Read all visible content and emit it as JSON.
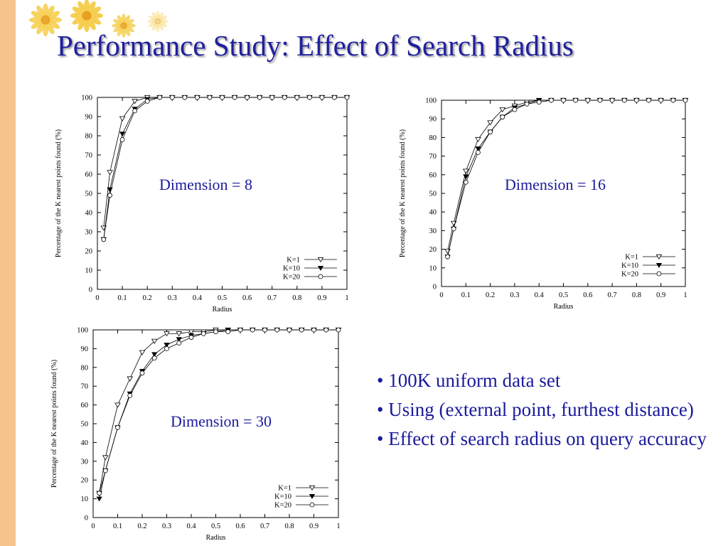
{
  "slide": {
    "title": "Performance Study: Effect of Search Radius",
    "bullets": [
      "• 100K uniform data set",
      "• Using (external point, furthest distance)",
      "• Effect of search radius on query accuracy"
    ],
    "colors": {
      "title": "#1f1f9e",
      "text": "#1a1a9c",
      "strip": "#f7c38c",
      "flower": "#f6cf52"
    }
  },
  "chart_data": [
    {
      "type": "line",
      "annotation": "Dimension = 8",
      "xlabel": "Radius",
      "ylabel": "Percentage of the K nearest points found (%)",
      "xlim": [
        0,
        1
      ],
      "ylim": [
        0,
        100
      ],
      "xticks": [
        "0",
        "0.1",
        "0.2",
        "0.3",
        "0.4",
        "0.5",
        "0.6",
        "0.7",
        "0.8",
        "0.9",
        "1"
      ],
      "yticks": [
        "0",
        "10",
        "20",
        "30",
        "40",
        "50",
        "60",
        "70",
        "80",
        "90",
        "100"
      ],
      "legend_position": "bottom-right",
      "x": [
        0.025,
        0.05,
        0.1,
        0.15,
        0.2,
        0.25,
        0.3,
        0.35,
        0.4,
        0.45,
        0.5,
        0.55,
        0.6,
        0.65,
        0.7,
        0.75,
        0.8,
        0.85,
        0.9,
        0.95,
        1.0
      ],
      "series": [
        {
          "name": "K=1",
          "marker": "triangle-down-open",
          "values": [
            32,
            61,
            89,
            98,
            100,
            100,
            100,
            100,
            100,
            100,
            100,
            100,
            100,
            100,
            100,
            100,
            100,
            100,
            100,
            100,
            100
          ]
        },
        {
          "name": "K=10",
          "marker": "triangle-down-filled",
          "values": [
            26,
            52,
            81,
            94,
            99,
            100,
            100,
            100,
            100,
            100,
            100,
            100,
            100,
            100,
            100,
            100,
            100,
            100,
            100,
            100,
            100
          ]
        },
        {
          "name": "K=20",
          "marker": "circle-open",
          "values": [
            26,
            49,
            78,
            93,
            98,
            100,
            100,
            100,
            100,
            100,
            100,
            100,
            100,
            100,
            100,
            100,
            100,
            100,
            100,
            100,
            100
          ]
        }
      ]
    },
    {
      "type": "line",
      "annotation": "Dimension = 16",
      "xlabel": "Radius",
      "ylabel": "Percentage of the K nearest points found (%)",
      "xlim": [
        0,
        1
      ],
      "ylim": [
        0,
        100
      ],
      "xticks": [
        "0",
        "0.1",
        "0.2",
        "0.3",
        "0.4",
        "0.5",
        "0.6",
        "0.7",
        "0.8",
        "0.9",
        "1"
      ],
      "yticks": [
        "0",
        "10",
        "20",
        "30",
        "40",
        "50",
        "60",
        "70",
        "80",
        "90",
        "100"
      ],
      "legend_position": "bottom-right",
      "x": [
        0.025,
        0.05,
        0.1,
        0.15,
        0.2,
        0.25,
        0.3,
        0.35,
        0.4,
        0.45,
        0.5,
        0.55,
        0.6,
        0.65,
        0.7,
        0.75,
        0.8,
        0.85,
        0.9,
        0.95,
        1.0
      ],
      "series": [
        {
          "name": "K=1",
          "marker": "triangle-down-open",
          "values": [
            19,
            34,
            62,
            79,
            88,
            95,
            97,
            99,
            100,
            100,
            100,
            100,
            100,
            100,
            100,
            100,
            100,
            100,
            100,
            100,
            100
          ]
        },
        {
          "name": "K=10",
          "marker": "triangle-down-filled",
          "values": [
            16,
            31,
            59,
            74,
            83,
            91,
            96,
            98,
            100,
            100,
            100,
            100,
            100,
            100,
            100,
            100,
            100,
            100,
            100,
            100,
            100
          ]
        },
        {
          "name": "K=20",
          "marker": "circle-open",
          "values": [
            16,
            31,
            56,
            72,
            83,
            91,
            95,
            98,
            99,
            100,
            100,
            100,
            100,
            100,
            100,
            100,
            100,
            100,
            100,
            100,
            100
          ]
        }
      ]
    },
    {
      "type": "line",
      "annotation": "Dimension = 30",
      "xlabel": "Radius",
      "ylabel": "Percentage of the K nearest points found (%)",
      "xlim": [
        0,
        1
      ],
      "ylim": [
        0,
        100
      ],
      "xticks": [
        "0",
        "0.1",
        "0.2",
        "0.3",
        "0.4",
        "0.5",
        "0.6",
        "0.7",
        "0.8",
        "0.9",
        "1"
      ],
      "yticks": [
        "0",
        "10",
        "20",
        "30",
        "40",
        "50",
        "60",
        "70",
        "80",
        "90",
        "100"
      ],
      "legend_position": "bottom-right",
      "x": [
        0.025,
        0.05,
        0.1,
        0.15,
        0.2,
        0.25,
        0.3,
        0.35,
        0.4,
        0.45,
        0.5,
        0.55,
        0.6,
        0.65,
        0.7,
        0.75,
        0.8,
        0.85,
        0.9,
        0.95,
        1.0
      ],
      "series": [
        {
          "name": "K=1",
          "marker": "triangle-down-open",
          "values": [
            13,
            32,
            60,
            74,
            88,
            94,
            98,
            98,
            99,
            99,
            100,
            100,
            100,
            100,
            100,
            100,
            100,
            100,
            100,
            100,
            100
          ]
        },
        {
          "name": "K=10",
          "marker": "triangle-down-filled",
          "values": [
            10,
            25,
            48,
            66,
            78,
            87,
            92,
            95,
            97,
            98,
            99,
            100,
            100,
            100,
            100,
            100,
            100,
            100,
            100,
            100,
            100
          ]
        },
        {
          "name": "K=20",
          "marker": "circle-open",
          "values": [
            13,
            25,
            48,
            65,
            77,
            85,
            90,
            93,
            96,
            98,
            99,
            99,
            100,
            100,
            100,
            100,
            100,
            100,
            100,
            100,
            100
          ]
        }
      ]
    }
  ]
}
